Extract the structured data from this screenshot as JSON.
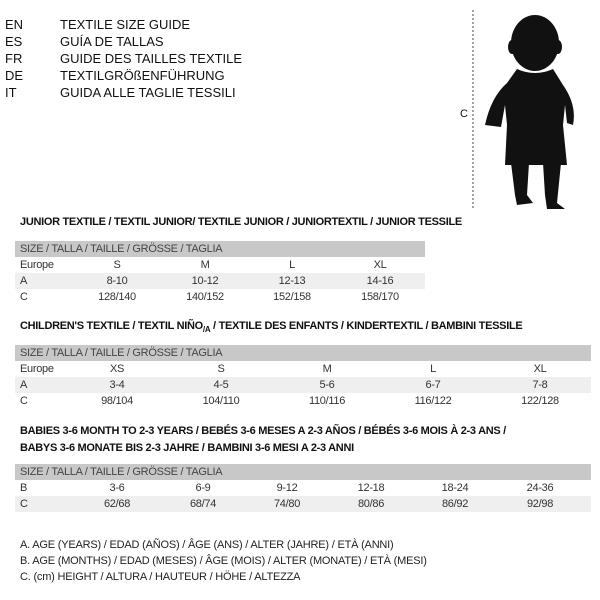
{
  "header": [
    {
      "code": "EN",
      "text": "TEXTILE SIZE GUIDE"
    },
    {
      "code": "ES",
      "text": "GUÍA DE TALLAS"
    },
    {
      "code": "FR",
      "text": "GUIDE DES TAILLES TEXTILE"
    },
    {
      "code": "DE",
      "text": "TEXTILGRÖßENFÜHRUNG"
    },
    {
      "code": "IT",
      "text": "GUIDA ALLE TAGLIE TESSILI"
    }
  ],
  "figure": {
    "label": "C"
  },
  "junior": {
    "title": "JUNIOR TEXTILE / TEXTIL JUNIOR/ TEXTILE JUNIOR / JUNIORTEXTIL / JUNIOR TESSILE",
    "header": "SIZE / TALLA / TAILLE / GRÖSSE / TAGLIA",
    "rows": [
      {
        "label": "Europe",
        "values": [
          "S",
          "M",
          "L",
          "XL"
        ]
      },
      {
        "label": "A",
        "values": [
          "8-10",
          "10-12",
          "12-13",
          "14-16"
        ]
      },
      {
        "label": "C",
        "values": [
          "128/140",
          "140/152",
          "152/158",
          "158/170"
        ]
      }
    ]
  },
  "children": {
    "title_a": "CHILDREN'S TEXTILE / TEXTIL NIÑO",
    "title_sub": "/A",
    "title_b": " / TEXTILE DES ENFANTS / KINDERTEXTIL / BAMBINI TESSILE",
    "header": "SIZE / TALLA / TAILLE / GRÖSSE / TAGLIA",
    "rows": [
      {
        "label": "Europe",
        "values": [
          "XS",
          "S",
          "M",
          "L",
          "XL"
        ]
      },
      {
        "label": "A",
        "values": [
          "3-4",
          "4-5",
          "5-6",
          "6-7",
          "7-8"
        ]
      },
      {
        "label": "C",
        "values": [
          "98/104",
          "104/110",
          "110/116",
          "116/122",
          "122/128"
        ]
      }
    ]
  },
  "babies": {
    "title_1": "BABIES 3-6 MONTH TO 2-3 YEARS / BEBÉS 3-6 MESES A 2-3 AÑOS / BÉBÉS 3-6 MOIS À 2-3 ANS /",
    "title_2": "BABYS 3-6 MONATE BIS 2-3 JAHRE / BAMBINI 3-6 MESI A 2-3 ANNI",
    "header": "SIZE / TALLA / TAILLE / GRÖSSE / TAGLIA",
    "rows": [
      {
        "label": "B",
        "values": [
          "3-6",
          "6-9",
          "9-12",
          "12-18",
          "18-24",
          "24-36"
        ]
      },
      {
        "label": "C",
        "values": [
          "62/68",
          "68/74",
          "74/80",
          "80/86",
          "86/92",
          "92/98"
        ]
      }
    ]
  },
  "legend": [
    "A. AGE (YEARS) / EDAD (AÑOS) / ÂGE (ANS) / ALTER (JAHRE) / ETÀ (ANNI)",
    "B. AGE (MONTHS) / EDAD (MESES) / ÂGE (MOIS) / ALTER (MONATE) / ETÀ (MESI)",
    "C. (cm) HEIGHT / ALTURA / HAUTEUR / HÖHE / ALTEZZA"
  ]
}
